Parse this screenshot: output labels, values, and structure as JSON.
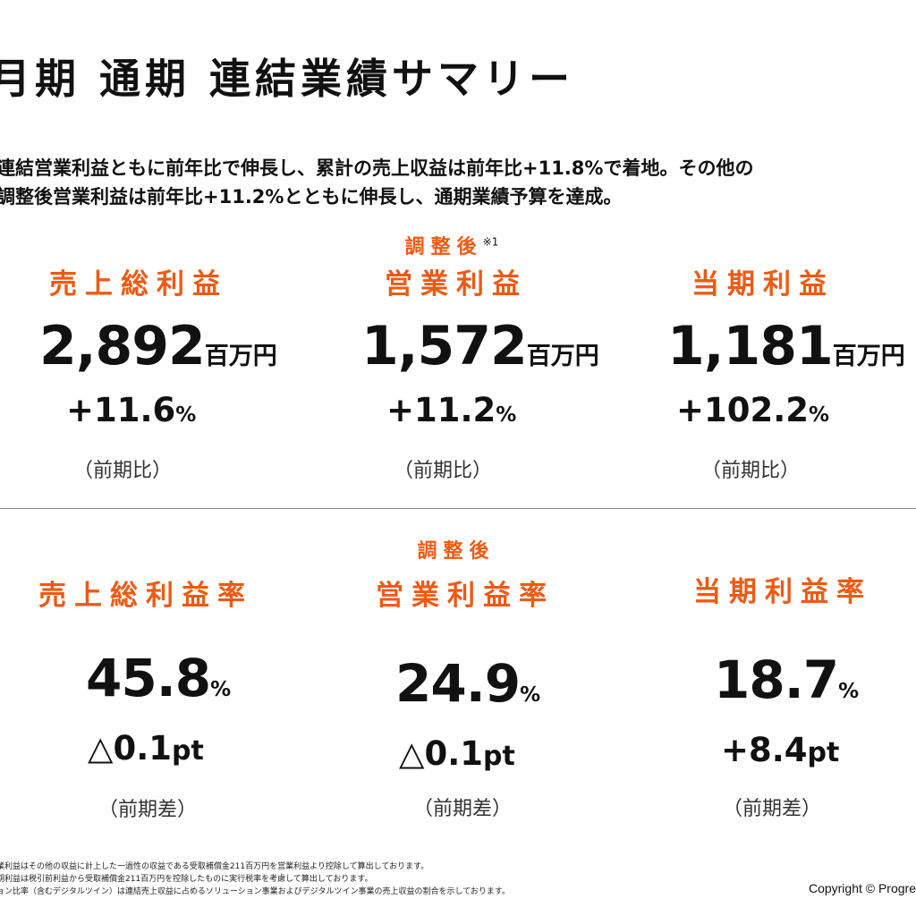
{
  "header": {
    "title": "月期 通期 連結業績サマリー",
    "summary_line1": "連結営業利益ともに前年比で伸長し、累計の売上収益は前年比+11.8%で着地。その他の",
    "summary_line2": "調整後営業利益は前年比+11.2%とともに伸長し、通期業績予算を達成。"
  },
  "top_metrics": [
    {
      "adjusted": "",
      "sup": "",
      "label": "売上総利益",
      "value": "2,892",
      "unit": "百万円",
      "change": "+11.6",
      "change_unit": "%",
      "paren": "（前期比）"
    },
    {
      "adjusted": "調整後",
      "sup": "※1",
      "label": "営業利益",
      "value": "1,572",
      "unit": "百万円",
      "change": "+11.2",
      "change_unit": "%",
      "paren": "（前期比）"
    },
    {
      "adjusted": "",
      "sup": "",
      "label": "当期利益",
      "value": "1,181",
      "unit": "百万円",
      "change": "+102.2",
      "change_unit": "%",
      "paren": "（前期比）"
    }
  ],
  "bottom_metrics": [
    {
      "adjusted": "",
      "label": "売上総利益率",
      "value": "45.8",
      "unit": "%",
      "change": "△0.1",
      "change_unit": "pt",
      "paren": "（前期差）"
    },
    {
      "adjusted": "調整後",
      "label": "営業利益率",
      "value": "24.9",
      "unit": "%",
      "change": "△0.1",
      "change_unit": "pt",
      "paren": "（前期差）"
    },
    {
      "adjusted": "",
      "label": "当期利益率",
      "value": "18.7",
      "unit": "%",
      "change": "+8.4",
      "change_unit": "pt",
      "paren": "（前期差）"
    }
  ],
  "footnotes": [
    "業利益はその他の収益に計上した一過性の収益である受取補償金211百万円を営業利益より控除して算出しております。",
    "期利益は税引前利益から受取補償金211百万円を控除したものに実行税率を考慮して算出しております。",
    "ョン比率（含むデジタルツイン）は連結売上収益に占めるソリューション事業およびデジタルツイン事業の売上収益の割合を示しております。"
  ],
  "copyright": "Copyright © Progre",
  "colors": {
    "accent": "#EE5A14",
    "text": "#111111",
    "divider": "#8a8a8a"
  }
}
